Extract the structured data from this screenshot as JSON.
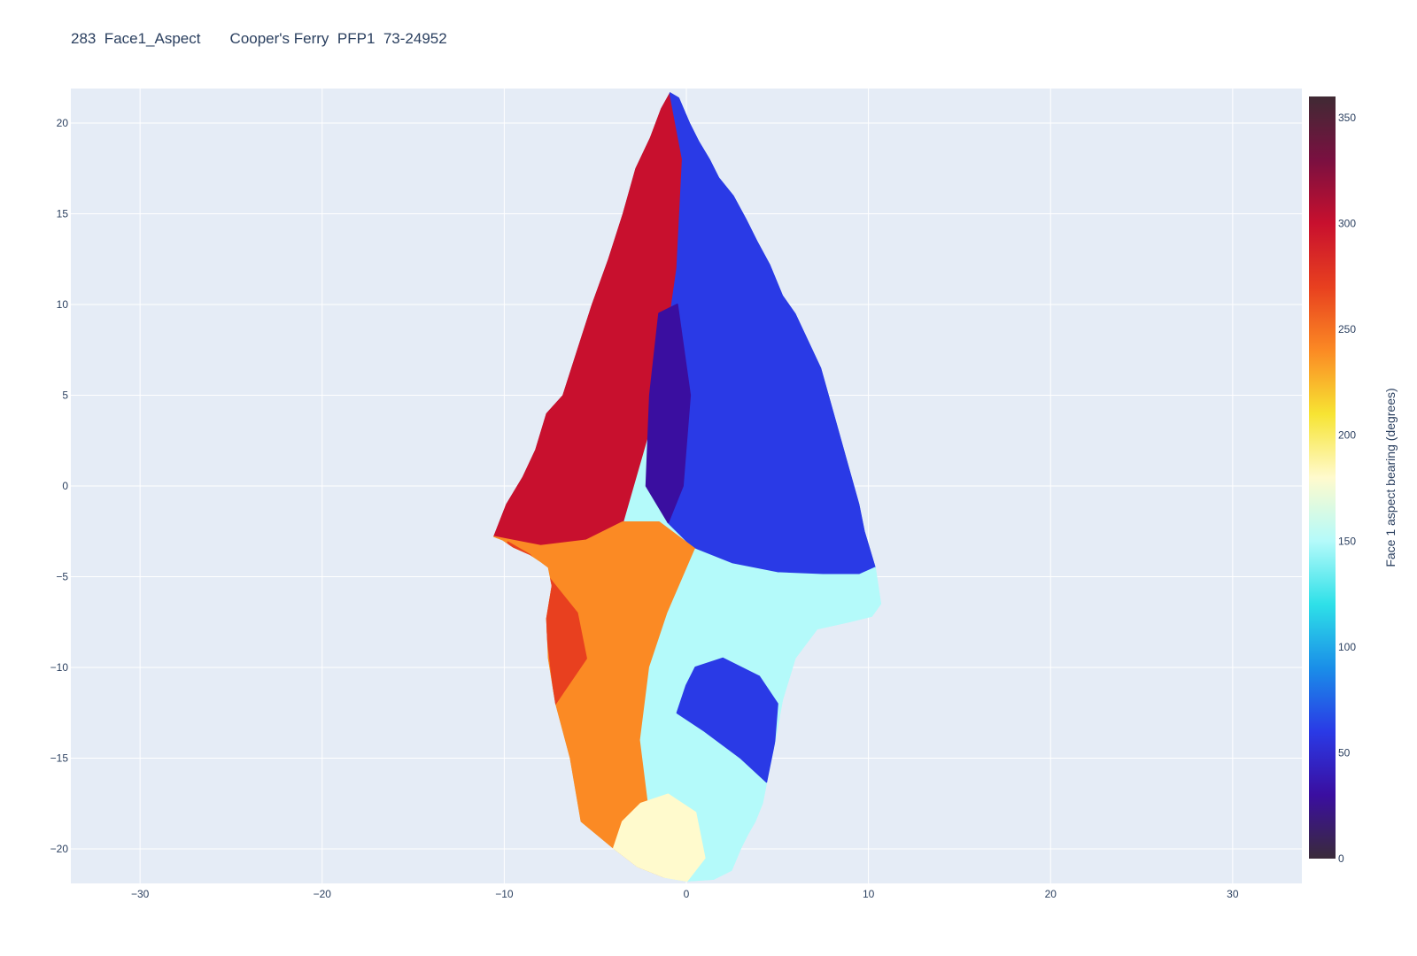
{
  "chart_data": {
    "type": "heatmap",
    "title": "283  Face1_Aspect       Cooper's Ferry  PFP1  73-24952",
    "xlabel": "",
    "ylabel": "",
    "xlim": [
      -33.8,
      33.8
    ],
    "ylim": [
      -21.9,
      21.9
    ],
    "x_ticks": [
      -30,
      -20,
      -10,
      0,
      10,
      20,
      30
    ],
    "x_tick_labels": [
      "−30",
      "−20",
      "−10",
      "0",
      "10",
      "20",
      "30"
    ],
    "y_ticks": [
      20,
      15,
      10,
      5,
      0,
      -5,
      -10,
      -15,
      -20
    ],
    "y_tick_labels": [
      "20",
      "15",
      "10",
      "5",
      "0",
      "−5",
      "−10",
      "−15",
      "−20"
    ],
    "grid": true,
    "colorbar": {
      "title": "Face 1 aspect bearing (degrees)",
      "range": [
        0,
        360
      ],
      "ticks": [
        0,
        50,
        100,
        150,
        200,
        250,
        300,
        350
      ],
      "tick_labels": [
        "0",
        "50",
        "100",
        "150",
        "200",
        "250",
        "300",
        "350"
      ],
      "colorscale": [
        "#3a2b3a",
        "#3a0ea0",
        "#2a3ae6",
        "#1a8ee8",
        "#2ee0e8",
        "#b4fafa",
        "#fffacd",
        "#f7e433",
        "#fb8a24",
        "#e8401f",
        "#c8102e",
        "#7a1040",
        "#402a34"
      ]
    },
    "outline": {
      "x": [
        -0.9,
        -0.4,
        0.2,
        0.7,
        1.3,
        1.8,
        2.6,
        3.3,
        3.9,
        4.6,
        5.3,
        6.0,
        6.7,
        7.4,
        8.1,
        8.8,
        9.5,
        9.8,
        10.4,
        10.7,
        10.2,
        9.0,
        7.2,
        6.0,
        5.3,
        4.9,
        4.5,
        4.2,
        3.8,
        3.4,
        3.0,
        2.5,
        1.5,
        0.0,
        -1.2,
        -2.7,
        -4.0,
        -5.8,
        -6.4,
        -7.2,
        -7.6,
        -7.7,
        -7.4,
        -7.6,
        -8.0,
        -8.6,
        -9.5,
        -10.1,
        -10.6,
        -9.9,
        -9.0,
        -8.3,
        -7.7,
        -6.8,
        -6.0,
        -5.2,
        -4.3,
        -3.5,
        -2.8,
        -2.0,
        -1.4,
        -0.9
      ],
      "y": [
        21.7,
        21.4,
        20.0,
        19.0,
        18.0,
        17.0,
        16.0,
        14.7,
        13.5,
        12.2,
        10.5,
        9.5,
        8.0,
        6.5,
        4.0,
        1.5,
        -1.0,
        -2.5,
        -4.5,
        -6.5,
        -7.2,
        -7.5,
        -7.9,
        -9.5,
        -11.8,
        -14.0,
        -16.0,
        -17.5,
        -18.5,
        -19.2,
        -20.0,
        -21.2,
        -21.7,
        -21.8,
        -21.6,
        -21.0,
        -20.0,
        -18.5,
        -15.0,
        -12.0,
        -9.5,
        -7.3,
        -5.5,
        -4.5,
        -4.2,
        -3.8,
        -3.4,
        -3.0,
        -2.8,
        -1.0,
        0.5,
        2.0,
        4.0,
        5.0,
        7.5,
        10.0,
        12.5,
        15.0,
        17.5,
        19.2,
        20.8,
        21.7
      ]
    },
    "regions": [
      {
        "aspect": 300,
        "x": [
          -0.9,
          -1.4,
          -2.0,
          -2.8,
          -3.5,
          -4.3,
          -5.2,
          -6.0,
          -6.8,
          -7.7,
          -8.3,
          -9.0,
          -9.9,
          -10.6,
          -8.0,
          -5.5,
          -3.5,
          -1.5,
          -0.5,
          -0.2
        ],
        "y": [
          21.7,
          20.8,
          19.2,
          17.5,
          15.0,
          12.5,
          10.0,
          7.5,
          5.0,
          4.0,
          2.0,
          0.5,
          -1.0,
          -2.8,
          -3.3,
          -3.0,
          -2.0,
          5.0,
          12.0,
          18.0
        ]
      },
      {
        "aspect": 55,
        "x": [
          -0.9,
          -0.4,
          0.2,
          0.7,
          1.3,
          1.8,
          2.6,
          3.3,
          3.9,
          4.6,
          5.3,
          6.0,
          6.7,
          7.4,
          8.1,
          8.8,
          9.5,
          9.8,
          10.4,
          9.5,
          7.5,
          5.0,
          2.5,
          0.5,
          -1.0,
          -1.5,
          -0.5,
          -0.2
        ],
        "y": [
          21.7,
          21.4,
          20.0,
          19.0,
          18.0,
          17.0,
          16.0,
          14.7,
          13.5,
          12.2,
          10.5,
          9.5,
          8.0,
          6.5,
          4.0,
          1.5,
          -1.0,
          -2.5,
          -4.5,
          -4.9,
          -4.9,
          -4.8,
          -4.3,
          -3.5,
          -2.0,
          5.0,
          12.0,
          18.0
        ]
      },
      {
        "aspect": 240,
        "x": [
          -10.6,
          -9.5,
          -8.6,
          -8.0,
          -7.6,
          -7.4,
          -7.7,
          -7.6,
          -7.2,
          -6.4,
          -5.8,
          -4.0,
          -2.7,
          -1.2,
          -2.0,
          -2.5,
          -2.0,
          -1.0,
          0.5,
          -1.5,
          -3.5,
          -5.5,
          -8.0
        ],
        "y": [
          -2.8,
          -3.4,
          -3.8,
          -4.2,
          -4.5,
          -5.5,
          -7.3,
          -9.5,
          -12.0,
          -15.0,
          -18.5,
          -20.0,
          -21.0,
          -21.6,
          -18.0,
          -14.0,
          -10.0,
          -7.0,
          -3.5,
          -2.0,
          -2.0,
          -3.0,
          -3.3
        ]
      },
      {
        "aspect": 150,
        "x": [
          0.5,
          2.5,
          5.0,
          7.5,
          9.5,
          10.4,
          10.7,
          10.2,
          9.0,
          7.2,
          6.0,
          5.3,
          4.9,
          4.5,
          4.2,
          3.8,
          3.4,
          3.0,
          2.5,
          1.5,
          0.0,
          -1.2,
          -2.0,
          -2.5,
          -2.0,
          -1.0
        ],
        "y": [
          -3.5,
          -4.3,
          -4.8,
          -4.9,
          -4.9,
          -4.5,
          -6.5,
          -7.2,
          -7.5,
          -7.9,
          -9.5,
          -11.8,
          -14.0,
          -16.0,
          -17.5,
          -18.5,
          -19.2,
          -20.0,
          -21.2,
          -21.7,
          -21.8,
          -21.6,
          -18.0,
          -14.0,
          -10.0,
          -7.0
        ]
      },
      {
        "aspect": 60,
        "x": [
          0.5,
          2.0,
          4.0,
          5.0,
          4.8,
          4.4,
          3.0,
          1.0,
          -0.5,
          0.0
        ],
        "y": [
          -10.0,
          -9.5,
          -10.5,
          -12.0,
          -14.5,
          -16.3,
          -15.0,
          -13.5,
          -12.5,
          -11.0
        ]
      },
      {
        "aspect": 280,
        "x": [
          -9.8,
          -8.6,
          -7.6,
          -6.0,
          -5.5,
          -7.2,
          -7.6,
          -8.4
        ],
        "y": [
          -3.1,
          -3.8,
          -5.0,
          -7.0,
          -9.5,
          -12.0,
          -8.5,
          -5.0
        ]
      },
      {
        "aspect": 190,
        "x": [
          -4.0,
          -2.7,
          -1.2,
          0.0,
          1.0,
          0.5,
          -1.0,
          -2.5,
          -3.5
        ],
        "y": [
          -20.0,
          -21.0,
          -21.6,
          -21.8,
          -20.5,
          -18.0,
          -17.0,
          -17.5,
          -18.5
        ]
      },
      {
        "aspect": 20,
        "x": [
          -2.0,
          -1.5,
          -0.5,
          0.2,
          -0.2,
          -1.0,
          -2.2
        ],
        "y": [
          5.0,
          9.5,
          10.0,
          5.0,
          0.0,
          -2.0,
          0.0
        ]
      }
    ]
  }
}
